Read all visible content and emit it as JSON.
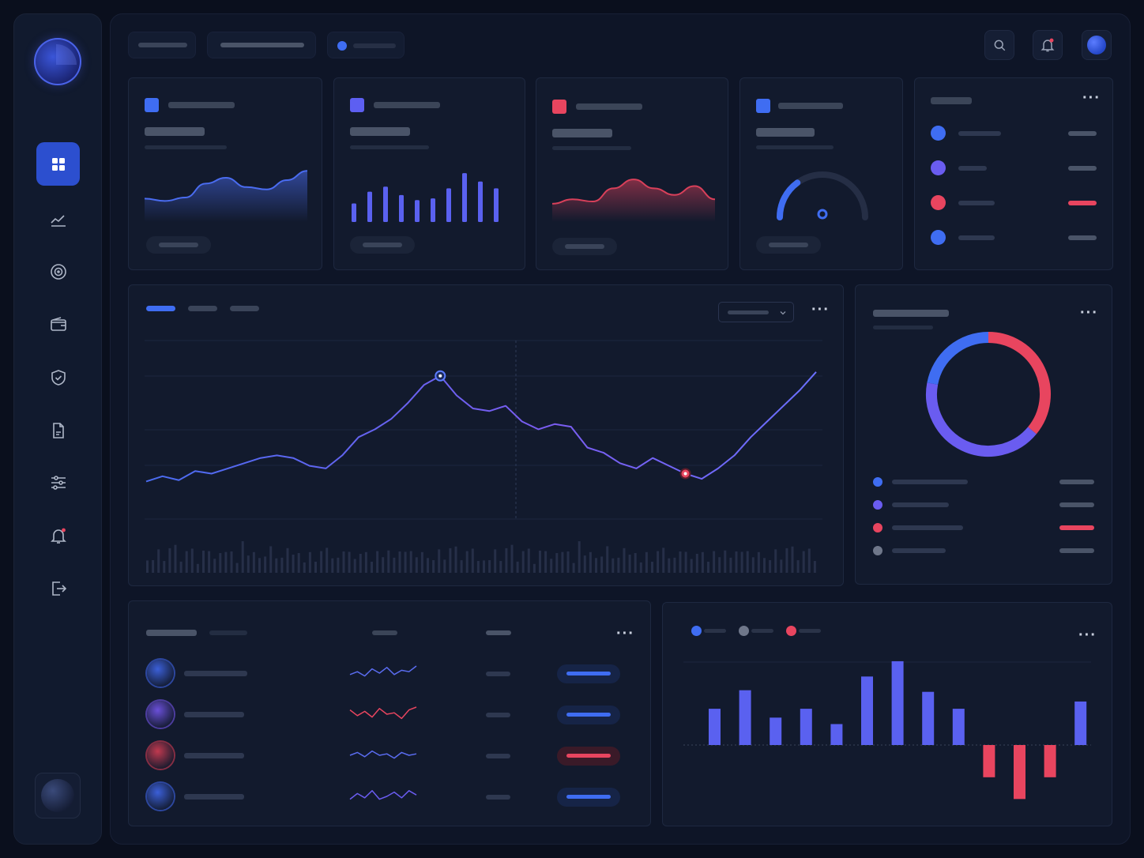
{
  "theme": {
    "background": "#0a0f1d",
    "panel": "#121a2d",
    "accent_blue": "#3f6df2",
    "accent_violet": "#6a5cf0",
    "accent_red": "#e8455f"
  },
  "sidebar": {
    "items": [
      {
        "icon": "dashboard-grid-icon",
        "active": true
      },
      {
        "icon": "trending-chart-icon",
        "active": false
      },
      {
        "icon": "target-icon",
        "active": false
      },
      {
        "icon": "wallet-icon",
        "active": false
      },
      {
        "icon": "shield-check-icon",
        "active": false
      },
      {
        "icon": "document-icon",
        "active": false
      },
      {
        "icon": "sliders-icon",
        "active": false
      },
      {
        "icon": "bell-icon",
        "active": false,
        "badge": true
      },
      {
        "icon": "logout-icon",
        "active": false
      }
    ]
  },
  "header": {
    "icons": [
      "search-icon",
      "notification-bell-icon",
      "user-avatar"
    ]
  },
  "kpi_cards": [
    {
      "chip_color": "#3f6df2",
      "chart": "area",
      "color": "#4a6cf0",
      "values": [
        12,
        10,
        13,
        25,
        30,
        22,
        20,
        28,
        36
      ]
    },
    {
      "chip_color": "#5d5ff2",
      "chart": "bar",
      "color": "#5a61f0",
      "values": [
        22,
        36,
        42,
        32,
        26,
        28,
        40,
        58,
        48,
        40
      ]
    },
    {
      "chip_color": "#e8455f",
      "chart": "area",
      "color": "#d9405a",
      "values": [
        8,
        12,
        10,
        22,
        30,
        22,
        16,
        24,
        12
      ]
    },
    {
      "chip_color": "#3f6df2",
      "chart": "gauge",
      "color": "#3f6df2",
      "value": 0.3
    }
  ],
  "legend_card": {
    "items": [
      {
        "color": "#3f6df2"
      },
      {
        "color": "#6a5cf0"
      },
      {
        "color": "#e8455f"
      },
      {
        "color": "#3f6df2"
      }
    ]
  },
  "main_chart": {
    "tabs": [
      {
        "active": true
      },
      {
        "active": false
      },
      {
        "active": false
      }
    ],
    "line_values": [
      4,
      8,
      5,
      12,
      10,
      14,
      18,
      22,
      24,
      22,
      16,
      14,
      24,
      38,
      44,
      52,
      64,
      78,
      85,
      70,
      60,
      58,
      62,
      50,
      44,
      48,
      46,
      30,
      26,
      18,
      14,
      22,
      16,
      10,
      6,
      14,
      24,
      38,
      50,
      62,
      74,
      88
    ],
    "peak_index": 18,
    "trough_index": 33,
    "volume_values": [
      20,
      14,
      30,
      18,
      26,
      34,
      16,
      22,
      28,
      12,
      36,
      24,
      18,
      30,
      22,
      26,
      14,
      32,
      20,
      28,
      24,
      18,
      34,
      22,
      16,
      30,
      26,
      20,
      12,
      28,
      18,
      24,
      32,
      22,
      16,
      26,
      30,
      14,
      22,
      28,
      18,
      24,
      20,
      34,
      16,
      26,
      30,
      22,
      18,
      28,
      24,
      14,
      30,
      20,
      26,
      32,
      18,
      22,
      28,
      16
    ]
  },
  "donut_card": {
    "segments": [
      {
        "value": 0.36,
        "color": "#e8455f"
      },
      {
        "value": 0.42,
        "color": "#6a5cf0"
      },
      {
        "value": 0.22,
        "color": "#3f6df2"
      }
    ],
    "legend": [
      {
        "color": "#3f6df2"
      },
      {
        "color": "#6a5cf0"
      },
      {
        "color": "#e8455f"
      },
      {
        "color": "#6f778a"
      }
    ]
  },
  "table_card": {
    "rows": [
      {
        "avatar": "#3b5fd8",
        "spark": "#5a6cf0",
        "pill": "#3f6df2",
        "spark_values": [
          4,
          6,
          3,
          8,
          5,
          9,
          4,
          7,
          6,
          10
        ]
      },
      {
        "avatar": "#6a4fd8",
        "spark": "#e8455f",
        "pill": "#3f6df2",
        "spark_values": [
          8,
          4,
          7,
          3,
          9,
          5,
          6,
          2,
          8,
          10
        ]
      },
      {
        "avatar": "#c0394f",
        "spark": "#5a6cf0",
        "pill": "#e8455f",
        "spark_values": [
          5,
          7,
          4,
          8,
          5,
          6,
          3,
          7,
          5,
          6
        ]
      },
      {
        "avatar": "#3b5fd8",
        "spark": "#6a5cf0",
        "pill": "#3f6df2",
        "spark_values": [
          3,
          7,
          4,
          9,
          3,
          5,
          8,
          4,
          9,
          6
        ]
      }
    ]
  },
  "bar_card": {
    "legend": [
      {
        "color": "#3f6df2"
      },
      {
        "color": "#6f778a"
      },
      {
        "color": "#e8455f"
      }
    ],
    "values": [
      45,
      68,
      34,
      45,
      26,
      85,
      104,
      66,
      45,
      -40,
      -67,
      -40,
      54
    ]
  }
}
